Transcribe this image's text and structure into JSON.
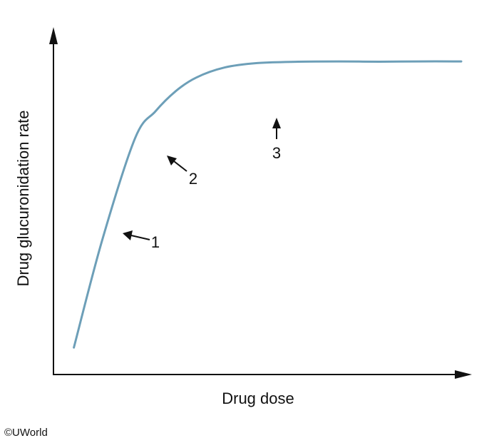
{
  "chart_data": {
    "type": "line",
    "xlabel": "Drug dose",
    "ylabel": "Drug glucuronidation rate",
    "xlim": [
      0,
      100
    ],
    "ylim": [
      0,
      100
    ],
    "grid": false,
    "line_color": "#6d9fb8",
    "series": [
      {
        "x": [
          5,
          12,
          20,
          25,
          30,
          35,
          42,
          50,
          60,
          70,
          80,
          90,
          100
        ],
        "values": [
          8,
          40,
          70,
          78,
          84,
          88,
          91,
          92.3,
          92.7,
          92.8,
          92.7,
          92.8,
          92.8
        ]
      }
    ],
    "annotations": [
      {
        "label": "1",
        "x": 20.5,
        "y": 45.5
      },
      {
        "label": "2",
        "x": 33,
        "y": 71
      },
      {
        "label": "3",
        "x": 62,
        "y": 87
      }
    ]
  },
  "credit": "©UWorld"
}
